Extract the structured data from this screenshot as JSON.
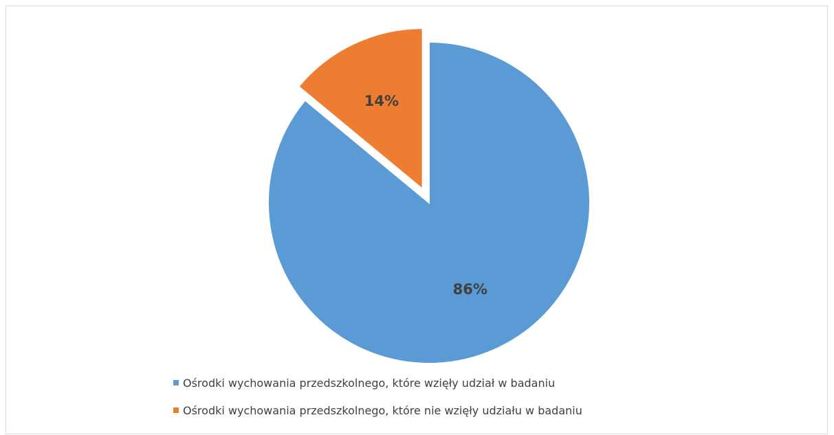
{
  "chart_data": {
    "type": "pie",
    "title": "",
    "categories": [
      "Ośrodki wychowania przedszkolnego, które wzięły udział w badaniu",
      "Ośrodki wychowania przedszkolnego, które nie wzięły udziału w badaniu"
    ],
    "values": [
      86,
      14
    ],
    "labels": [
      "86%",
      "14%"
    ],
    "colors": [
      "#5b9bd5",
      "#ed7d31"
    ],
    "exploded": [
      false,
      true
    ],
    "legend_position": "bottom"
  }
}
